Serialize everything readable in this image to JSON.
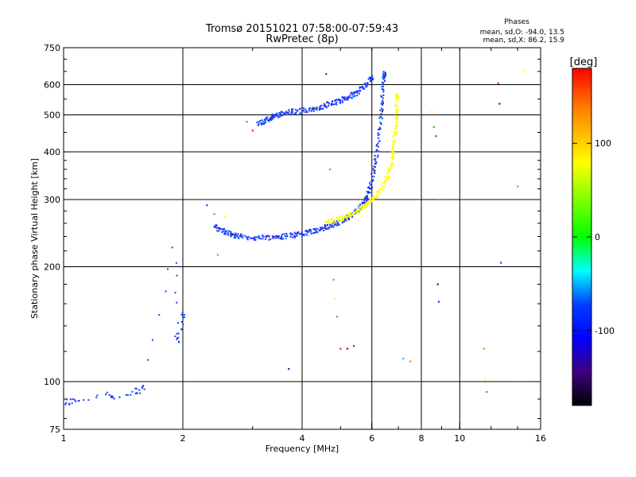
{
  "chart_data": {
    "type": "scatter",
    "title": "Tromsø 20151021 07:58:00-07:59:43",
    "subtitle": "RwPretec (8p)",
    "xlabel": "Frequency [MHz]",
    "ylabel": "Stationary phase Virtual Height [km]",
    "xscale": "log",
    "yscale": "log",
    "xlim": [
      1,
      16
    ],
    "ylim": [
      75,
      750
    ],
    "x_ticks": [
      1,
      2,
      4,
      6,
      8,
      10,
      16
    ],
    "y_ticks": [
      75,
      100,
      200,
      300,
      400,
      500,
      600,
      750
    ],
    "x_grid": [
      2,
      4,
      6,
      8,
      10
    ],
    "y_grid": [
      100,
      200,
      300,
      400,
      500,
      600
    ],
    "grid": true,
    "stats": {
      "heading": "Phases",
      "line_o": "mean, sd,O: -94.0, 13.5",
      "line_x": "mean, sd,X: 86.2, 15.9"
    },
    "colorbar": {
      "label": "[deg]",
      "range": [
        -180,
        180
      ],
      "ticks": [
        100,
        0,
        -100
      ],
      "colors": [
        "#ff0000",
        "#ff8000",
        "#ffff00",
        "#00ff00",
        "#00ffff",
        "#0040ff",
        "#0000ff",
        "#400080",
        "#000000"
      ]
    },
    "series": [
      {
        "name": "O-mode lower trace",
        "phase": -95,
        "color": "#1a3cff",
        "points": [
          [
            2.4,
            255
          ],
          [
            2.5,
            250
          ],
          [
            2.6,
            245
          ],
          [
            2.7,
            242
          ],
          [
            2.8,
            240
          ],
          [
            3.0,
            238
          ],
          [
            3.2,
            238
          ],
          [
            3.4,
            239
          ],
          [
            3.6,
            240
          ],
          [
            3.8,
            242
          ],
          [
            4.0,
            244
          ],
          [
            4.2,
            247
          ],
          [
            4.4,
            250
          ],
          [
            4.6,
            254
          ],
          [
            4.8,
            258
          ],
          [
            5.0,
            262
          ],
          [
            5.2,
            268
          ],
          [
            5.4,
            275
          ],
          [
            5.6,
            285
          ],
          [
            5.8,
            300
          ],
          [
            5.9,
            315
          ],
          [
            6.0,
            335
          ],
          [
            6.1,
            365
          ],
          [
            6.2,
            410
          ],
          [
            6.3,
            470
          ],
          [
            6.35,
            530
          ],
          [
            6.4,
            590
          ],
          [
            6.45,
            640
          ]
        ]
      },
      {
        "name": "O-mode upper trace",
        "phase": -95,
        "color": "#1a3cff",
        "points": [
          [
            3.1,
            475
          ],
          [
            3.2,
            480
          ],
          [
            3.3,
            488
          ],
          [
            3.4,
            495
          ],
          [
            3.5,
            500
          ],
          [
            3.6,
            505
          ],
          [
            3.8,
            510
          ],
          [
            4.0,
            513
          ],
          [
            4.2,
            518
          ],
          [
            4.4,
            522
          ],
          [
            4.6,
            530
          ],
          [
            4.8,
            538
          ],
          [
            5.0,
            545
          ],
          [
            5.2,
            555
          ],
          [
            5.4,
            565
          ],
          [
            5.6,
            580
          ],
          [
            5.8,
            600
          ],
          [
            6.0,
            625
          ]
        ]
      },
      {
        "name": "X-mode trace",
        "phase": 86,
        "color": "#ffff00",
        "points": [
          [
            4.6,
            262
          ],
          [
            4.8,
            265
          ],
          [
            5.0,
            268
          ],
          [
            5.2,
            272
          ],
          [
            5.4,
            276
          ],
          [
            5.6,
            282
          ],
          [
            5.8,
            290
          ],
          [
            6.0,
            298
          ],
          [
            6.2,
            308
          ],
          [
            6.4,
            325
          ],
          [
            6.6,
            348
          ],
          [
            6.7,
            370
          ],
          [
            6.8,
            400
          ],
          [
            6.85,
            430
          ],
          [
            6.9,
            470
          ],
          [
            6.93,
            510
          ],
          [
            6.95,
            560
          ]
        ]
      },
      {
        "name": "low-frequency echoes",
        "phase": -100,
        "color": "#1a3cff",
        "points": [
          [
            1.02,
            88
          ],
          [
            1.05,
            89
          ],
          [
            1.1,
            90
          ],
          [
            1.3,
            92
          ],
          [
            1.35,
            91
          ],
          [
            1.5,
            94
          ],
          [
            1.55,
            95
          ],
          [
            1.6,
            97
          ],
          [
            1.9,
            228
          ],
          [
            1.93,
            132
          ],
          [
            1.96,
            128
          ],
          [
            2.0,
            150
          ]
        ]
      },
      {
        "name": "scattered echoes",
        "phase": 0,
        "color": "#555555",
        "points": [
          [
            2.3,
            290
          ],
          [
            2.4,
            275
          ],
          [
            2.45,
            215
          ],
          [
            2.55,
            270
          ],
          [
            2.9,
            480
          ],
          [
            3.0,
            455
          ],
          [
            3.7,
            108
          ],
          [
            4.6,
            640
          ],
          [
            4.7,
            360
          ],
          [
            4.8,
            185
          ],
          [
            4.85,
            165
          ],
          [
            4.9,
            148
          ],
          [
            5.0,
            122
          ],
          [
            5.2,
            122
          ],
          [
            5.4,
            124
          ],
          [
            7.2,
            115
          ],
          [
            7.5,
            113
          ],
          [
            8.5,
            510
          ],
          [
            8.6,
            465
          ],
          [
            8.7,
            440
          ],
          [
            8.8,
            180
          ],
          [
            8.85,
            162
          ],
          [
            8.9,
            300
          ],
          [
            11.5,
            122
          ],
          [
            11.6,
            102
          ],
          [
            11.7,
            94
          ],
          [
            12.5,
            605
          ],
          [
            12.6,
            535
          ],
          [
            12.7,
            205
          ],
          [
            14.0,
            325
          ],
          [
            14.2,
            100
          ],
          [
            14.5,
            655
          ]
        ]
      }
    ]
  }
}
